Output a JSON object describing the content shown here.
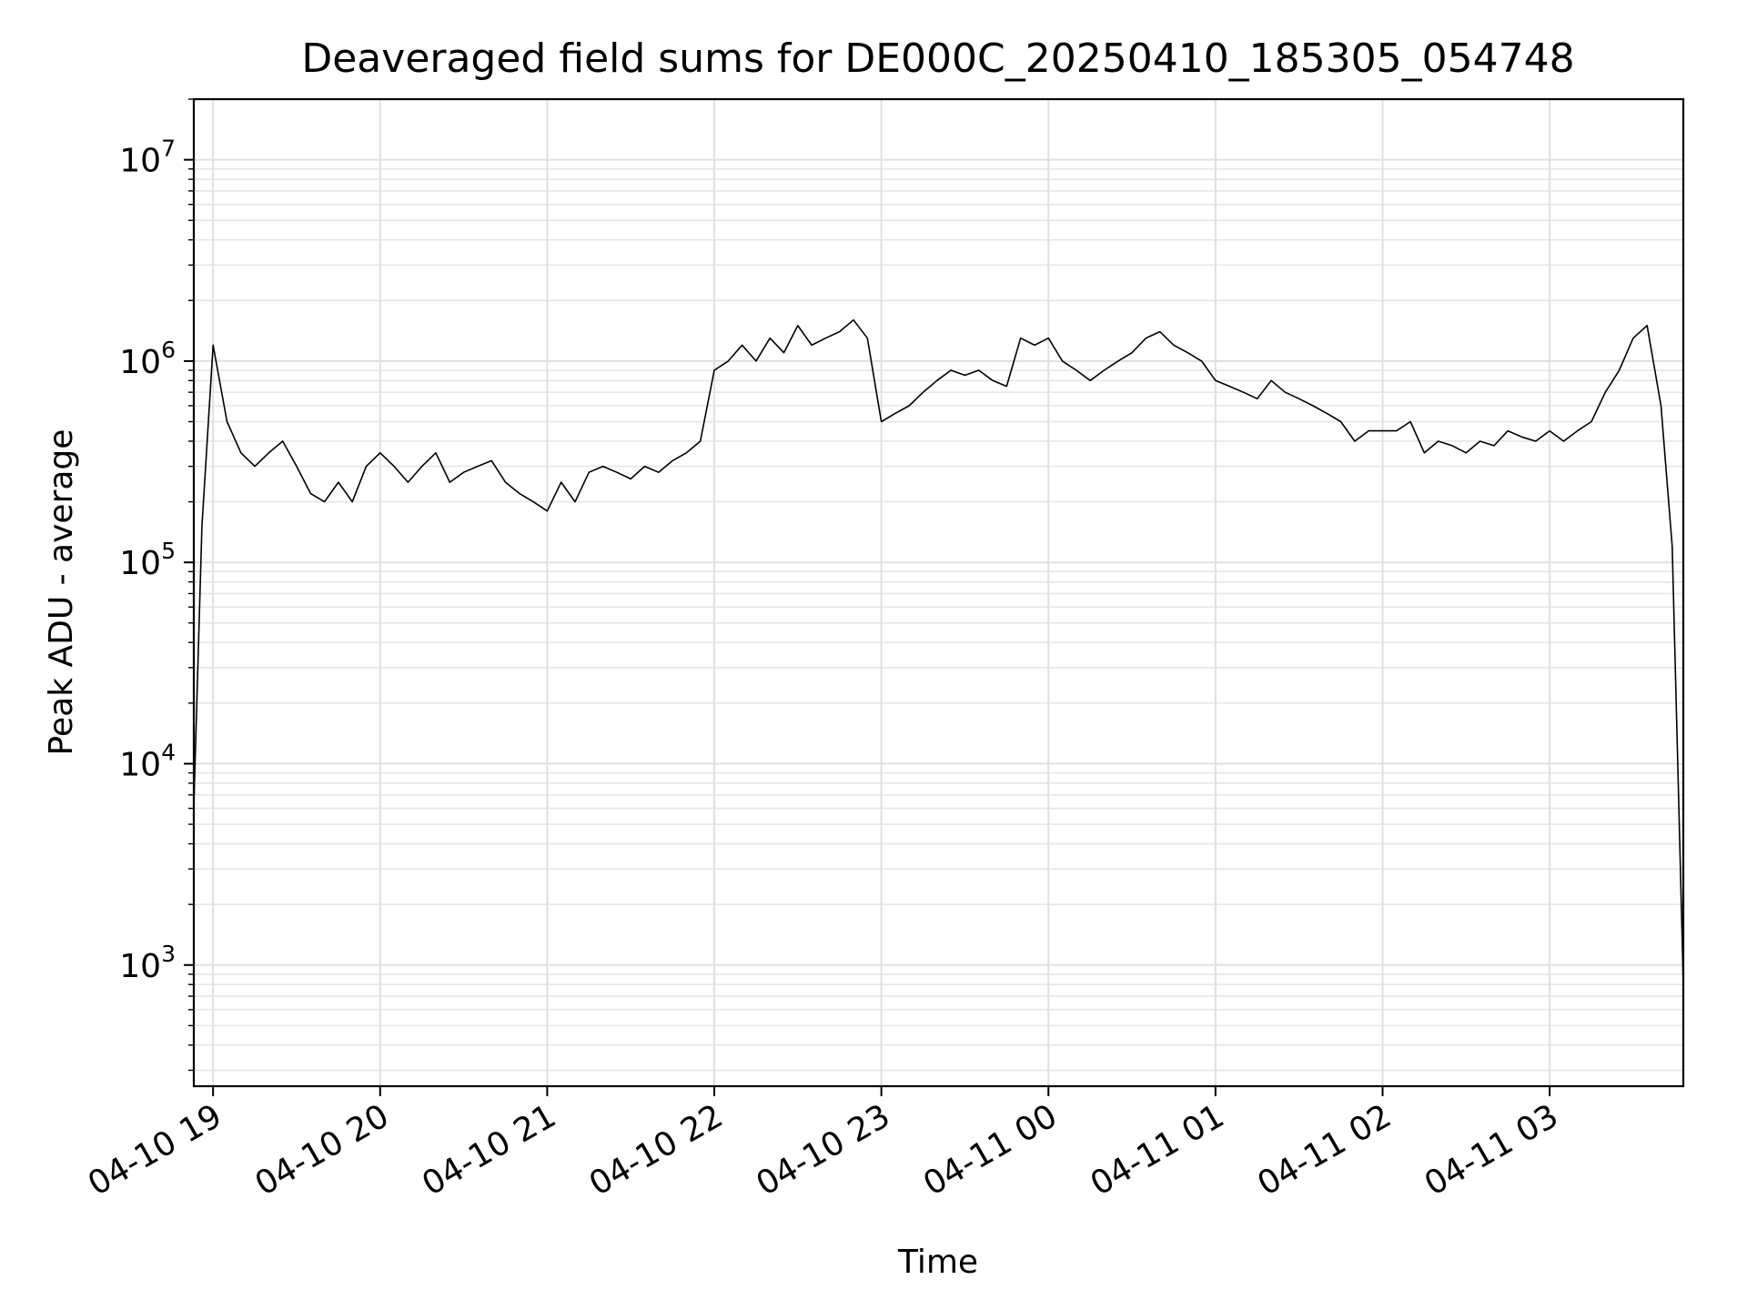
{
  "chart_data": {
    "type": "line",
    "title": "Deaveraged field sums for DE000C_20250410_185305_054748",
    "xlabel": "Time",
    "ylabel": "Peak ADU - average",
    "y_scale": "log",
    "ylim": [
      250,
      20000000
    ],
    "xlim": [
      "2025-04-10 18:53:05",
      "2025-04-11 03:48:00"
    ],
    "grid": true,
    "x_ticks": [
      {
        "t": "2025-04-10 19:00",
        "label": "04-10 19"
      },
      {
        "t": "2025-04-10 20:00",
        "label": "04-10 20"
      },
      {
        "t": "2025-04-10 21:00",
        "label": "04-10 21"
      },
      {
        "t": "2025-04-10 22:00",
        "label": "04-10 22"
      },
      {
        "t": "2025-04-10 23:00",
        "label": "04-10 23"
      },
      {
        "t": "2025-04-11 00:00",
        "label": "04-11 00"
      },
      {
        "t": "2025-04-11 01:00",
        "label": "04-11 01"
      },
      {
        "t": "2025-04-11 02:00",
        "label": "04-11 02"
      },
      {
        "t": "2025-04-11 03:00",
        "label": "04-11 03"
      }
    ],
    "y_ticks": [
      {
        "value": 1000,
        "base": "10",
        "exp": "3"
      },
      {
        "value": 10000,
        "base": "10",
        "exp": "4"
      },
      {
        "value": 100000,
        "base": "10",
        "exp": "5"
      },
      {
        "value": 1000000,
        "base": "10",
        "exp": "6"
      },
      {
        "value": 10000000,
        "base": "10",
        "exp": "7"
      }
    ],
    "series": [
      {
        "color": "#000000",
        "x": [
          "2025-04-10 18:53",
          "2025-04-10 18:56",
          "2025-04-10 19:00",
          "2025-04-10 19:05",
          "2025-04-10 19:10",
          "2025-04-10 19:15",
          "2025-04-10 19:20",
          "2025-04-10 19:25",
          "2025-04-10 19:30",
          "2025-04-10 19:35",
          "2025-04-10 19:40",
          "2025-04-10 19:45",
          "2025-04-10 19:50",
          "2025-04-10 19:55",
          "2025-04-10 20:00",
          "2025-04-10 20:05",
          "2025-04-10 20:10",
          "2025-04-10 20:15",
          "2025-04-10 20:20",
          "2025-04-10 20:25",
          "2025-04-10 20:30",
          "2025-04-10 20:35",
          "2025-04-10 20:40",
          "2025-04-10 20:45",
          "2025-04-10 20:50",
          "2025-04-10 20:55",
          "2025-04-10 21:00",
          "2025-04-10 21:05",
          "2025-04-10 21:10",
          "2025-04-10 21:15",
          "2025-04-10 21:20",
          "2025-04-10 21:25",
          "2025-04-10 21:30",
          "2025-04-10 21:35",
          "2025-04-10 21:40",
          "2025-04-10 21:45",
          "2025-04-10 21:50",
          "2025-04-10 21:55",
          "2025-04-10 22:00",
          "2025-04-10 22:05",
          "2025-04-10 22:10",
          "2025-04-10 22:15",
          "2025-04-10 22:20",
          "2025-04-10 22:25",
          "2025-04-10 22:30",
          "2025-04-10 22:35",
          "2025-04-10 22:40",
          "2025-04-10 22:45",
          "2025-04-10 22:50",
          "2025-04-10 22:55",
          "2025-04-10 23:00",
          "2025-04-10 23:05",
          "2025-04-10 23:10",
          "2025-04-10 23:15",
          "2025-04-10 23:20",
          "2025-04-10 23:25",
          "2025-04-10 23:30",
          "2025-04-10 23:35",
          "2025-04-10 23:40",
          "2025-04-10 23:45",
          "2025-04-10 23:50",
          "2025-04-10 23:55",
          "2025-04-11 00:00",
          "2025-04-11 00:05",
          "2025-04-11 00:10",
          "2025-04-11 00:15",
          "2025-04-11 00:20",
          "2025-04-11 00:25",
          "2025-04-11 00:30",
          "2025-04-11 00:35",
          "2025-04-11 00:40",
          "2025-04-11 00:45",
          "2025-04-11 00:50",
          "2025-04-11 00:55",
          "2025-04-11 01:00",
          "2025-04-11 01:05",
          "2025-04-11 01:10",
          "2025-04-11 01:15",
          "2025-04-11 01:20",
          "2025-04-11 01:25",
          "2025-04-11 01:30",
          "2025-04-11 01:35",
          "2025-04-11 01:40",
          "2025-04-11 01:45",
          "2025-04-11 01:50",
          "2025-04-11 01:55",
          "2025-04-11 02:00",
          "2025-04-11 02:05",
          "2025-04-11 02:10",
          "2025-04-11 02:15",
          "2025-04-11 02:20",
          "2025-04-11 02:25",
          "2025-04-11 02:30",
          "2025-04-11 02:35",
          "2025-04-11 02:40",
          "2025-04-11 02:45",
          "2025-04-11 02:50",
          "2025-04-11 02:55",
          "2025-04-11 03:00",
          "2025-04-11 03:05",
          "2025-04-11 03:10",
          "2025-04-11 03:15",
          "2025-04-11 03:20",
          "2025-04-11 03:25",
          "2025-04-11 03:30",
          "2025-04-11 03:35",
          "2025-04-11 03:40",
          "2025-04-11 03:44",
          "2025-04-11 03:46",
          "2025-04-11 03:48"
        ],
        "y": [
          5500,
          150000,
          1200000,
          500000,
          350000,
          300000,
          350000,
          400000,
          300000,
          220000,
          200000,
          250000,
          200000,
          300000,
          350000,
          300000,
          250000,
          300000,
          350000,
          250000,
          280000,
          300000,
          320000,
          250000,
          220000,
          200000,
          180000,
          250000,
          200000,
          280000,
          300000,
          280000,
          260000,
          300000,
          280000,
          320000,
          350000,
          400000,
          900000,
          1000000,
          1200000,
          1000000,
          1300000,
          1100000,
          1500000,
          1200000,
          1300000,
          1400000,
          1600000,
          1300000,
          500000,
          550000,
          600000,
          700000,
          800000,
          900000,
          850000,
          900000,
          800000,
          750000,
          1300000,
          1200000,
          1300000,
          1000000,
          900000,
          800000,
          900000,
          1000000,
          1100000,
          1300000,
          1400000,
          1200000,
          1100000,
          1000000,
          800000,
          750000,
          700000,
          650000,
          800000,
          700000,
          650000,
          600000,
          550000,
          500000,
          400000,
          450000,
          450000,
          450000,
          500000,
          350000,
          400000,
          380000,
          350000,
          400000,
          380000,
          450000,
          420000,
          400000,
          450000,
          400000,
          450000,
          500000,
          700000,
          900000,
          1300000,
          1500000,
          600000,
          120000,
          10000,
          800
        ]
      }
    ]
  }
}
